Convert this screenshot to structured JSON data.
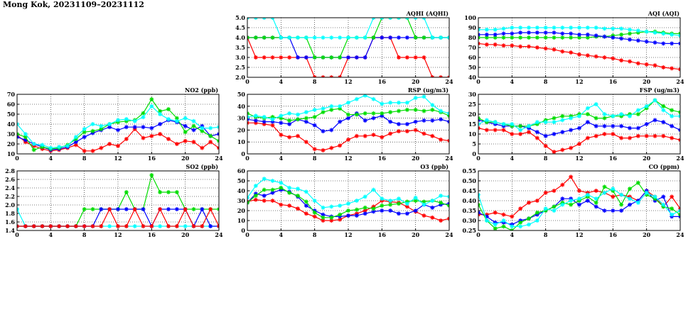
{
  "page": {
    "title": "Mong Kok, 20231109–20231112"
  },
  "colors": {
    "red": "#ff0000",
    "green": "#00dd00",
    "blue": "#0000ff",
    "cyan": "#00ffff"
  },
  "chart_data": [
    {
      "id": "aqhi",
      "type": "line",
      "title": "AQHI (AQHI)",
      "xlim": [
        0,
        24
      ],
      "xticks": [
        0,
        4,
        8,
        12,
        16,
        20,
        24
      ],
      "ylim": [
        2.0,
        5.0
      ],
      "yticks": [
        "2.0",
        "2.5",
        "3.0",
        "3.5",
        "4.0",
        "4.5",
        "5.0"
      ],
      "grid": true,
      "series": [
        {
          "color": "red",
          "values": [
            4,
            3,
            3,
            3,
            3,
            3,
            3,
            3,
            2,
            2,
            2,
            2,
            3,
            3,
            3,
            4,
            4,
            4,
            3,
            3,
            3,
            3,
            2,
            2,
            2
          ]
        },
        {
          "color": "blue",
          "values": [
            4,
            4,
            4,
            4,
            4,
            4,
            3,
            3,
            3,
            3,
            3,
            3,
            3,
            3,
            3,
            4,
            4,
            4,
            4,
            4,
            4,
            4,
            4,
            4,
            4
          ]
        },
        {
          "color": "green",
          "values": [
            4,
            4,
            4,
            4,
            4,
            4,
            4,
            4,
            3,
            3,
            3,
            3,
            4,
            4,
            4,
            4,
            5,
            5,
            5,
            5,
            4,
            4,
            4,
            4,
            4
          ]
        },
        {
          "color": "cyan",
          "values": [
            5,
            5,
            5,
            5,
            4,
            4,
            4,
            4,
            4,
            4,
            4,
            4,
            4,
            4,
            4,
            5,
            5,
            5,
            5,
            5,
            5,
            5,
            4,
            4,
            4
          ]
        }
      ]
    },
    {
      "id": "aqi",
      "type": "line",
      "title": "AQI (AQI)",
      "xlim": [
        0,
        24
      ],
      "xticks": [
        0,
        4,
        8,
        12,
        16,
        20,
        24
      ],
      "ylim": [
        40,
        100
      ],
      "yticks": [
        "40",
        "50",
        "60",
        "70",
        "80",
        "90",
        "100"
      ],
      "grid": true,
      "series": [
        {
          "color": "red",
          "values": [
            74,
            73,
            73,
            72,
            72,
            71,
            71,
            70,
            69,
            68,
            66,
            65,
            63,
            62,
            61,
            60,
            59,
            57,
            56,
            54,
            53,
            52,
            50,
            49,
            48
          ]
        },
        {
          "color": "green",
          "values": [
            80,
            80,
            80,
            80,
            80,
            80,
            80,
            80,
            80,
            80,
            80,
            80,
            80,
            80,
            81,
            81,
            82,
            83,
            84,
            85,
            86,
            86,
            85,
            84,
            84
          ]
        },
        {
          "color": "blue",
          "values": [
            83,
            83,
            83,
            84,
            84,
            85,
            85,
            85,
            85,
            85,
            84,
            84,
            83,
            83,
            82,
            81,
            80,
            79,
            78,
            77,
            76,
            75,
            74,
            74,
            74
          ]
        },
        {
          "color": "cyan",
          "values": [
            88,
            88,
            88,
            89,
            90,
            90,
            90,
            90,
            90,
            90,
            90,
            90,
            90,
            90,
            90,
            89,
            89,
            89,
            88,
            87,
            86,
            85,
            84,
            83,
            82
          ]
        }
      ]
    },
    {
      "id": "no2",
      "type": "line",
      "title": "NO2 (ppb)",
      "xlim": [
        0,
        24
      ],
      "xticks": [
        0,
        4,
        8,
        12,
        16,
        20,
        24
      ],
      "ylim": [
        10,
        70
      ],
      "yticks": [
        "10",
        "20",
        "30",
        "40",
        "50",
        "60",
        "70"
      ],
      "grid": true,
      "series": [
        {
          "color": "red",
          "values": [
            29,
            22,
            18,
            15,
            13,
            14,
            16,
            19,
            13,
            13,
            16,
            20,
            18,
            25,
            35,
            26,
            28,
            30,
            25,
            20,
            23,
            22,
            16,
            22,
            16
          ]
        },
        {
          "color": "blue",
          "values": [
            27,
            24,
            20,
            17,
            14,
            15,
            17,
            22,
            27,
            31,
            34,
            37,
            34,
            37,
            37,
            37,
            36,
            40,
            44,
            42,
            38,
            34,
            38,
            28,
            30
          ]
        },
        {
          "color": "green",
          "values": [
            30,
            27,
            14,
            17,
            15,
            16,
            19,
            25,
            32,
            33,
            35,
            40,
            42,
            43,
            44,
            51,
            65,
            53,
            55,
            46,
            32,
            38,
            33,
            28,
            23
          ]
        },
        {
          "color": "cyan",
          "values": [
            40,
            30,
            20,
            19,
            16,
            17,
            18,
            27,
            35,
            40,
            38,
            40,
            44,
            45,
            43,
            47,
            58,
            50,
            45,
            43,
            46,
            43,
            36,
            36,
            37
          ]
        }
      ]
    },
    {
      "id": "rsp",
      "type": "line",
      "title": "RSP (ug/m3)",
      "xlim": [
        0,
        24
      ],
      "xticks": [
        0,
        4,
        8,
        12,
        16,
        20,
        24
      ],
      "ylim": [
        0,
        50
      ],
      "yticks": [
        "0",
        "10",
        "20",
        "30",
        "40",
        "50"
      ],
      "grid": true,
      "series": [
        {
          "color": "red",
          "values": [
            26,
            26,
            25,
            24,
            16,
            14,
            15,
            10,
            4,
            3,
            5,
            7,
            12,
            15,
            15,
            16,
            14,
            17,
            19,
            19,
            20,
            17,
            15,
            12,
            11
          ]
        },
        {
          "color": "blue",
          "values": [
            29,
            28,
            27,
            27,
            26,
            25,
            29,
            27,
            24,
            19,
            20,
            27,
            30,
            34,
            28,
            30,
            32,
            27,
            25,
            25,
            27,
            28,
            28,
            29,
            27
          ]
        },
        {
          "color": "green",
          "values": [
            34,
            31,
            30,
            31,
            30,
            28,
            29,
            30,
            31,
            35,
            37,
            38,
            33,
            33,
            34,
            34,
            34,
            35,
            36,
            37,
            37,
            36,
            37,
            35,
            32
          ]
        },
        {
          "color": "cyan",
          "values": [
            31,
            32,
            31,
            29,
            32,
            34,
            33,
            35,
            37,
            38,
            40,
            40,
            43,
            46,
            49,
            46,
            42,
            43,
            43,
            43,
            47,
            48,
            41,
            36,
            34
          ]
        }
      ]
    },
    {
      "id": "fsp",
      "type": "line",
      "title": "FSP (ug/m3)",
      "xlim": [
        0,
        24
      ],
      "xticks": [
        0,
        4,
        8,
        12,
        16,
        20,
        24
      ],
      "ylim": [
        0,
        30
      ],
      "yticks": [
        "0",
        "5",
        "10",
        "15",
        "20",
        "25",
        "30"
      ],
      "grid": true,
      "series": [
        {
          "color": "red",
          "values": [
            13,
            12,
            12,
            12,
            10,
            10,
            11,
            8,
            4,
            1,
            2,
            3,
            5,
            8,
            9,
            10,
            10,
            8,
            8,
            9,
            9,
            9,
            9,
            8,
            7
          ]
        },
        {
          "color": "blue",
          "values": [
            17,
            16,
            15,
            14,
            14,
            14,
            13,
            11,
            9,
            10,
            11,
            12,
            13,
            16,
            14,
            14,
            14,
            14,
            13,
            13,
            15,
            17,
            16,
            14,
            12
          ]
        },
        {
          "color": "green",
          "values": [
            18,
            16,
            16,
            15,
            14,
            14,
            14,
            15,
            17,
            18,
            19,
            19,
            20,
            20,
            18,
            18,
            19,
            19,
            20,
            20,
            23,
            27,
            24,
            22,
            21
          ]
        },
        {
          "color": "cyan",
          "values": [
            15,
            17,
            16,
            15,
            15,
            12,
            14,
            16,
            16,
            16,
            17,
            18,
            19,
            23,
            25,
            20,
            19,
            20,
            19,
            22,
            24,
            27,
            22,
            19,
            19
          ]
        }
      ]
    },
    {
      "id": "so2",
      "type": "line",
      "title": "SO2 (ppb)",
      "xlim": [
        0,
        24
      ],
      "xticks": [
        0,
        4,
        8,
        12,
        16,
        20,
        24
      ],
      "ylim": [
        1.4,
        2.8
      ],
      "yticks": [
        "1.4",
        "1.6",
        "1.8",
        "2.0",
        "2.2",
        "2.4",
        "2.6",
        "2.8"
      ],
      "grid": true,
      "series": [
        {
          "color": "cyan",
          "values": [
            1.9,
            1.5,
            1.5,
            1.5,
            1.5,
            1.5,
            1.5,
            1.5,
            1.5,
            1.5,
            1.5,
            1.5,
            1.5,
            1.5,
            1.5,
            1.5,
            1.5,
            1.5,
            1.5,
            1.5,
            1.5,
            1.5,
            1.5,
            1.5,
            1.5
          ]
        },
        {
          "color": "green",
          "values": [
            1.5,
            1.5,
            1.5,
            1.5,
            1.5,
            1.5,
            1.5,
            1.5,
            1.9,
            1.9,
            1.9,
            1.9,
            1.9,
            2.3,
            1.9,
            1.9,
            2.7,
            2.3,
            2.3,
            2.3,
            1.9,
            1.9,
            1.9,
            1.9,
            1.9
          ]
        },
        {
          "color": "blue",
          "values": [
            1.5,
            1.5,
            1.5,
            1.5,
            1.5,
            1.5,
            1.5,
            1.5,
            1.5,
            1.5,
            1.9,
            1.9,
            1.9,
            1.9,
            1.9,
            1.9,
            1.5,
            1.9,
            1.9,
            1.9,
            1.9,
            1.5,
            1.9,
            1.5,
            1.5
          ]
        },
        {
          "color": "red",
          "values": [
            1.5,
            1.5,
            1.5,
            1.5,
            1.5,
            1.5,
            1.5,
            1.5,
            1.5,
            1.5,
            1.5,
            1.9,
            1.5,
            1.5,
            1.9,
            1.5,
            1.5,
            1.9,
            1.5,
            1.5,
            1.9,
            1.5,
            1.5,
            1.9,
            1.5
          ]
        }
      ]
    },
    {
      "id": "o3",
      "type": "line",
      "title": "O3 (ppb)",
      "xlim": [
        0,
        24
      ],
      "xticks": [
        0,
        4,
        8,
        12,
        16,
        20,
        24
      ],
      "ylim": [
        0,
        60
      ],
      "yticks": [
        "0",
        "10",
        "20",
        "30",
        "40",
        "50",
        "60"
      ],
      "grid": true,
      "series": [
        {
          "color": "red",
          "values": [
            29,
            31,
            30,
            30,
            26,
            25,
            22,
            17,
            14,
            10,
            10,
            11,
            15,
            17,
            20,
            24,
            30,
            29,
            28,
            24,
            19,
            15,
            13,
            10,
            12
          ]
        },
        {
          "color": "blue",
          "values": [
            28,
            37,
            35,
            38,
            41,
            39,
            34,
            25,
            20,
            16,
            14,
            14,
            15,
            15,
            17,
            19,
            20,
            20,
            17,
            17,
            20,
            26,
            23,
            26,
            27
          ]
        },
        {
          "color": "green",
          "values": [
            28,
            35,
            41,
            41,
            43,
            38,
            35,
            29,
            18,
            13,
            13,
            16,
            20,
            21,
            23,
            22,
            25,
            26,
            27,
            29,
            30,
            29,
            30,
            28,
            25
          ]
        },
        {
          "color": "cyan",
          "values": [
            33,
            45,
            52,
            50,
            48,
            43,
            42,
            39,
            30,
            23,
            24,
            25,
            27,
            30,
            34,
            41,
            32,
            30,
            32,
            27,
            33,
            26,
            30,
            35,
            34
          ]
        }
      ]
    },
    {
      "id": "co",
      "type": "line",
      "title": "CO (ppm)",
      "xlim": [
        0,
        24
      ],
      "xticks": [
        0,
        4,
        8,
        12,
        16,
        20,
        24
      ],
      "ylim": [
        0.25,
        0.55
      ],
      "yticks": [
        "0.25",
        "0.30",
        "0.35",
        "0.40",
        "0.45",
        "0.50",
        "0.55"
      ],
      "grid": true,
      "series": [
        {
          "color": "red",
          "values": [
            0.33,
            0.33,
            0.34,
            0.33,
            0.32,
            0.36,
            0.39,
            0.4,
            0.44,
            0.45,
            0.48,
            0.52,
            0.45,
            0.44,
            0.45,
            0.44,
            0.42,
            0.43,
            0.42,
            0.4,
            0.45,
            0.42,
            0.37,
            0.42,
            0.36
          ]
        },
        {
          "color": "blue",
          "values": [
            0.34,
            0.32,
            0.29,
            0.29,
            0.28,
            0.3,
            0.31,
            0.33,
            0.35,
            0.37,
            0.41,
            0.41,
            0.38,
            0.4,
            0.37,
            0.35,
            0.35,
            0.35,
            0.38,
            0.4,
            0.45,
            0.4,
            0.42,
            0.32,
            0.32
          ]
        },
        {
          "color": "green",
          "values": [
            0.38,
            0.3,
            0.26,
            0.27,
            0.25,
            0.29,
            0.31,
            0.34,
            0.35,
            0.37,
            0.39,
            0.38,
            0.4,
            0.42,
            0.39,
            0.47,
            0.45,
            0.38,
            0.46,
            0.49,
            0.43,
            0.41,
            0.37,
            0.36,
            0.33
          ]
        },
        {
          "color": "cyan",
          "values": [
            0.43,
            0.3,
            0.28,
            0.3,
            0.27,
            0.27,
            0.28,
            0.3,
            0.36,
            0.35,
            0.38,
            0.4,
            0.41,
            0.43,
            0.41,
            0.44,
            0.46,
            0.43,
            0.41,
            0.39,
            0.44,
            0.42,
            0.38,
            0.33,
            0.35
          ]
        }
      ]
    }
  ]
}
